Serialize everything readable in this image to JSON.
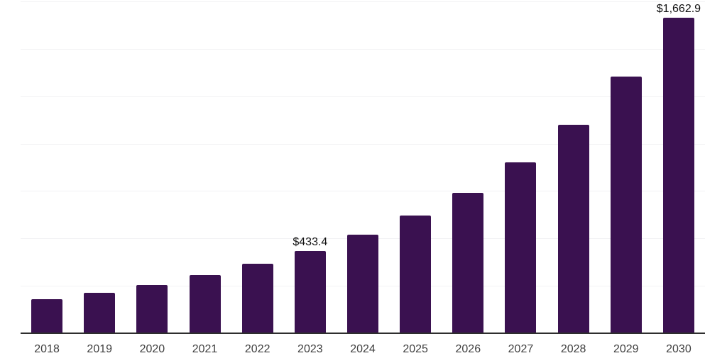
{
  "chart_data": {
    "type": "bar",
    "categories": [
      "2018",
      "2019",
      "2020",
      "2021",
      "2022",
      "2023",
      "2024",
      "2025",
      "2026",
      "2027",
      "2028",
      "2029",
      "2030"
    ],
    "values": [
      180,
      215,
      255,
      308,
      365,
      433.4,
      519,
      621,
      740,
      901,
      1100,
      1354,
      1662.9
    ],
    "data_labels": [
      "",
      "",
      "",
      "",
      "",
      "$433.4",
      "",
      "",
      "",
      "",
      "",
      "",
      "$1,662.9"
    ],
    "ylim": [
      0,
      1750
    ],
    "gridline_step": 250,
    "grid": "horizontal",
    "legend": "none",
    "colors": {
      "bar": "#3A1150",
      "axis_line": "#2E2E2E",
      "gridline": "#F2F2F4",
      "tick_label": "#404040",
      "data_label": "#111111",
      "background": "#FFFFFF"
    }
  }
}
